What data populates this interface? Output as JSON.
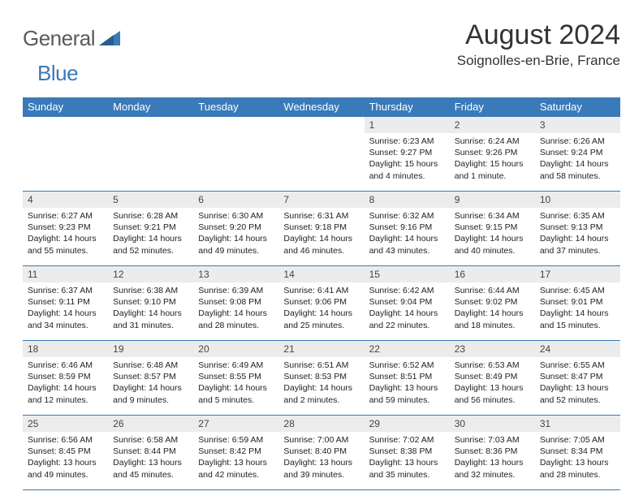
{
  "brand": {
    "part1": "General",
    "part2": "Blue"
  },
  "title": "August 2024",
  "location": "Soignolles-en-Brie, France",
  "day_headers": [
    "Sunday",
    "Monday",
    "Tuesday",
    "Wednesday",
    "Thursday",
    "Friday",
    "Saturday"
  ],
  "colors": {
    "header_bg": "#3a7ab8",
    "header_text": "#ffffff",
    "daynum_bg": "#ececec",
    "border": "#3a7ab8",
    "logo_gray": "#5a5a5a",
    "logo_blue": "#3a7ab8"
  },
  "weeks": [
    [
      {
        "n": "",
        "sunrise": "",
        "sunset": "",
        "daylight": "",
        "empty": true
      },
      {
        "n": "",
        "sunrise": "",
        "sunset": "",
        "daylight": "",
        "empty": true
      },
      {
        "n": "",
        "sunrise": "",
        "sunset": "",
        "daylight": "",
        "empty": true
      },
      {
        "n": "",
        "sunrise": "",
        "sunset": "",
        "daylight": "",
        "empty": true
      },
      {
        "n": "1",
        "sunrise": "Sunrise: 6:23 AM",
        "sunset": "Sunset: 9:27 PM",
        "daylight": "Daylight: 15 hours and 4 minutes."
      },
      {
        "n": "2",
        "sunrise": "Sunrise: 6:24 AM",
        "sunset": "Sunset: 9:26 PM",
        "daylight": "Daylight: 15 hours and 1 minute."
      },
      {
        "n": "3",
        "sunrise": "Sunrise: 6:26 AM",
        "sunset": "Sunset: 9:24 PM",
        "daylight": "Daylight: 14 hours and 58 minutes."
      }
    ],
    [
      {
        "n": "4",
        "sunrise": "Sunrise: 6:27 AM",
        "sunset": "Sunset: 9:23 PM",
        "daylight": "Daylight: 14 hours and 55 minutes."
      },
      {
        "n": "5",
        "sunrise": "Sunrise: 6:28 AM",
        "sunset": "Sunset: 9:21 PM",
        "daylight": "Daylight: 14 hours and 52 minutes."
      },
      {
        "n": "6",
        "sunrise": "Sunrise: 6:30 AM",
        "sunset": "Sunset: 9:20 PM",
        "daylight": "Daylight: 14 hours and 49 minutes."
      },
      {
        "n": "7",
        "sunrise": "Sunrise: 6:31 AM",
        "sunset": "Sunset: 9:18 PM",
        "daylight": "Daylight: 14 hours and 46 minutes."
      },
      {
        "n": "8",
        "sunrise": "Sunrise: 6:32 AM",
        "sunset": "Sunset: 9:16 PM",
        "daylight": "Daylight: 14 hours and 43 minutes."
      },
      {
        "n": "9",
        "sunrise": "Sunrise: 6:34 AM",
        "sunset": "Sunset: 9:15 PM",
        "daylight": "Daylight: 14 hours and 40 minutes."
      },
      {
        "n": "10",
        "sunrise": "Sunrise: 6:35 AM",
        "sunset": "Sunset: 9:13 PM",
        "daylight": "Daylight: 14 hours and 37 minutes."
      }
    ],
    [
      {
        "n": "11",
        "sunrise": "Sunrise: 6:37 AM",
        "sunset": "Sunset: 9:11 PM",
        "daylight": "Daylight: 14 hours and 34 minutes."
      },
      {
        "n": "12",
        "sunrise": "Sunrise: 6:38 AM",
        "sunset": "Sunset: 9:10 PM",
        "daylight": "Daylight: 14 hours and 31 minutes."
      },
      {
        "n": "13",
        "sunrise": "Sunrise: 6:39 AM",
        "sunset": "Sunset: 9:08 PM",
        "daylight": "Daylight: 14 hours and 28 minutes."
      },
      {
        "n": "14",
        "sunrise": "Sunrise: 6:41 AM",
        "sunset": "Sunset: 9:06 PM",
        "daylight": "Daylight: 14 hours and 25 minutes."
      },
      {
        "n": "15",
        "sunrise": "Sunrise: 6:42 AM",
        "sunset": "Sunset: 9:04 PM",
        "daylight": "Daylight: 14 hours and 22 minutes."
      },
      {
        "n": "16",
        "sunrise": "Sunrise: 6:44 AM",
        "sunset": "Sunset: 9:02 PM",
        "daylight": "Daylight: 14 hours and 18 minutes."
      },
      {
        "n": "17",
        "sunrise": "Sunrise: 6:45 AM",
        "sunset": "Sunset: 9:01 PM",
        "daylight": "Daylight: 14 hours and 15 minutes."
      }
    ],
    [
      {
        "n": "18",
        "sunrise": "Sunrise: 6:46 AM",
        "sunset": "Sunset: 8:59 PM",
        "daylight": "Daylight: 14 hours and 12 minutes."
      },
      {
        "n": "19",
        "sunrise": "Sunrise: 6:48 AM",
        "sunset": "Sunset: 8:57 PM",
        "daylight": "Daylight: 14 hours and 9 minutes."
      },
      {
        "n": "20",
        "sunrise": "Sunrise: 6:49 AM",
        "sunset": "Sunset: 8:55 PM",
        "daylight": "Daylight: 14 hours and 5 minutes."
      },
      {
        "n": "21",
        "sunrise": "Sunrise: 6:51 AM",
        "sunset": "Sunset: 8:53 PM",
        "daylight": "Daylight: 14 hours and 2 minutes."
      },
      {
        "n": "22",
        "sunrise": "Sunrise: 6:52 AM",
        "sunset": "Sunset: 8:51 PM",
        "daylight": "Daylight: 13 hours and 59 minutes."
      },
      {
        "n": "23",
        "sunrise": "Sunrise: 6:53 AM",
        "sunset": "Sunset: 8:49 PM",
        "daylight": "Daylight: 13 hours and 56 minutes."
      },
      {
        "n": "24",
        "sunrise": "Sunrise: 6:55 AM",
        "sunset": "Sunset: 8:47 PM",
        "daylight": "Daylight: 13 hours and 52 minutes."
      }
    ],
    [
      {
        "n": "25",
        "sunrise": "Sunrise: 6:56 AM",
        "sunset": "Sunset: 8:45 PM",
        "daylight": "Daylight: 13 hours and 49 minutes."
      },
      {
        "n": "26",
        "sunrise": "Sunrise: 6:58 AM",
        "sunset": "Sunset: 8:44 PM",
        "daylight": "Daylight: 13 hours and 45 minutes."
      },
      {
        "n": "27",
        "sunrise": "Sunrise: 6:59 AM",
        "sunset": "Sunset: 8:42 PM",
        "daylight": "Daylight: 13 hours and 42 minutes."
      },
      {
        "n": "28",
        "sunrise": "Sunrise: 7:00 AM",
        "sunset": "Sunset: 8:40 PM",
        "daylight": "Daylight: 13 hours and 39 minutes."
      },
      {
        "n": "29",
        "sunrise": "Sunrise: 7:02 AM",
        "sunset": "Sunset: 8:38 PM",
        "daylight": "Daylight: 13 hours and 35 minutes."
      },
      {
        "n": "30",
        "sunrise": "Sunrise: 7:03 AM",
        "sunset": "Sunset: 8:36 PM",
        "daylight": "Daylight: 13 hours and 32 minutes."
      },
      {
        "n": "31",
        "sunrise": "Sunrise: 7:05 AM",
        "sunset": "Sunset: 8:34 PM",
        "daylight": "Daylight: 13 hours and 28 minutes."
      }
    ]
  ]
}
